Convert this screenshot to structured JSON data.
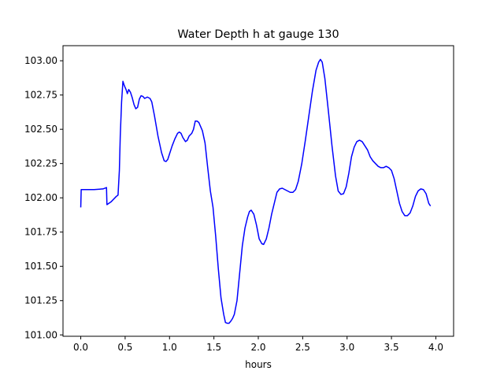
{
  "chart_data": {
    "type": "line",
    "title": "Water Depth h at gauge 130",
    "xlabel": "hours",
    "ylabel": "",
    "xlim": [
      -0.2,
      4.2
    ],
    "ylim": [
      100.99,
      103.11
    ],
    "xticks": [
      0.0,
      0.5,
      1.0,
      1.5,
      2.0,
      2.5,
      3.0,
      3.5,
      4.0
    ],
    "xtick_labels": [
      "0.0",
      "0.5",
      "1.0",
      "1.5",
      "2.0",
      "2.5",
      "3.0",
      "3.5",
      "4.0"
    ],
    "yticks": [
      101.0,
      101.25,
      101.5,
      101.75,
      102.0,
      102.25,
      102.5,
      102.75,
      103.0
    ],
    "ytick_labels": [
      "101.00",
      "101.25",
      "101.50",
      "101.75",
      "102.00",
      "102.25",
      "102.50",
      "102.75",
      "103.00"
    ],
    "grid": false,
    "line_color": "#0000ff",
    "series": [
      {
        "name": "",
        "points": [
          [
            0.0,
            101.93
          ],
          [
            0.005,
            102.06
          ],
          [
            0.05,
            102.06
          ],
          [
            0.15,
            102.06
          ],
          [
            0.25,
            102.065
          ],
          [
            0.29,
            102.075
          ],
          [
            0.295,
            101.95
          ],
          [
            0.34,
            101.97
          ],
          [
            0.4,
            102.01
          ],
          [
            0.42,
            102.02
          ],
          [
            0.435,
            102.2
          ],
          [
            0.445,
            102.45
          ],
          [
            0.46,
            102.7
          ],
          [
            0.475,
            102.85
          ],
          [
            0.49,
            102.82
          ],
          [
            0.51,
            102.79
          ],
          [
            0.525,
            102.76
          ],
          [
            0.54,
            102.79
          ],
          [
            0.56,
            102.77
          ],
          [
            0.58,
            102.73
          ],
          [
            0.6,
            102.68
          ],
          [
            0.62,
            102.65
          ],
          [
            0.64,
            102.66
          ],
          [
            0.66,
            102.72
          ],
          [
            0.68,
            102.745
          ],
          [
            0.7,
            102.74
          ],
          [
            0.72,
            102.725
          ],
          [
            0.75,
            102.735
          ],
          [
            0.78,
            102.725
          ],
          [
            0.8,
            102.7
          ],
          [
            0.83,
            102.6
          ],
          [
            0.87,
            102.45
          ],
          [
            0.91,
            102.33
          ],
          [
            0.94,
            102.27
          ],
          [
            0.96,
            102.265
          ],
          [
            0.98,
            102.28
          ],
          [
            1.0,
            102.32
          ],
          [
            1.03,
            102.38
          ],
          [
            1.06,
            102.43
          ],
          [
            1.09,
            102.47
          ],
          [
            1.11,
            102.48
          ],
          [
            1.13,
            102.47
          ],
          [
            1.15,
            102.44
          ],
          [
            1.18,
            102.41
          ],
          [
            1.2,
            102.42
          ],
          [
            1.22,
            102.45
          ],
          [
            1.25,
            102.47
          ],
          [
            1.27,
            102.5
          ],
          [
            1.29,
            102.56
          ],
          [
            1.31,
            102.56
          ],
          [
            1.33,
            102.55
          ],
          [
            1.35,
            102.52
          ],
          [
            1.37,
            102.49
          ],
          [
            1.4,
            102.4
          ],
          [
            1.43,
            102.22
          ],
          [
            1.46,
            102.05
          ],
          [
            1.49,
            101.93
          ],
          [
            1.52,
            101.72
          ],
          [
            1.55,
            101.48
          ],
          [
            1.58,
            101.27
          ],
          [
            1.61,
            101.15
          ],
          [
            1.63,
            101.09
          ],
          [
            1.65,
            101.085
          ],
          [
            1.67,
            101.085
          ],
          [
            1.69,
            101.1
          ],
          [
            1.71,
            101.12
          ],
          [
            1.73,
            101.15
          ],
          [
            1.76,
            101.25
          ],
          [
            1.79,
            101.45
          ],
          [
            1.82,
            101.65
          ],
          [
            1.85,
            101.78
          ],
          [
            1.88,
            101.86
          ],
          [
            1.9,
            101.9
          ],
          [
            1.92,
            101.91
          ],
          [
            1.95,
            101.88
          ],
          [
            1.98,
            101.8
          ],
          [
            2.01,
            101.7
          ],
          [
            2.04,
            101.665
          ],
          [
            2.06,
            101.66
          ],
          [
            2.09,
            101.7
          ],
          [
            2.12,
            101.78
          ],
          [
            2.15,
            101.88
          ],
          [
            2.18,
            101.96
          ],
          [
            2.21,
            102.04
          ],
          [
            2.24,
            102.065
          ],
          [
            2.27,
            102.07
          ],
          [
            2.3,
            102.06
          ],
          [
            2.33,
            102.05
          ],
          [
            2.36,
            102.04
          ],
          [
            2.39,
            102.04
          ],
          [
            2.42,
            102.06
          ],
          [
            2.45,
            102.12
          ],
          [
            2.49,
            102.25
          ],
          [
            2.53,
            102.42
          ],
          [
            2.57,
            102.6
          ],
          [
            2.61,
            102.78
          ],
          [
            2.65,
            102.93
          ],
          [
            2.68,
            102.99
          ],
          [
            2.7,
            103.01
          ],
          [
            2.72,
            102.99
          ],
          [
            2.75,
            102.87
          ],
          [
            2.79,
            102.63
          ],
          [
            2.83,
            102.38
          ],
          [
            2.87,
            102.16
          ],
          [
            2.9,
            102.05
          ],
          [
            2.93,
            102.025
          ],
          [
            2.96,
            102.03
          ],
          [
            2.99,
            102.08
          ],
          [
            3.02,
            102.18
          ],
          [
            3.05,
            102.3
          ],
          [
            3.08,
            102.37
          ],
          [
            3.11,
            102.41
          ],
          [
            3.14,
            102.42
          ],
          [
            3.17,
            102.41
          ],
          [
            3.2,
            102.38
          ],
          [
            3.23,
            102.35
          ],
          [
            3.26,
            102.3
          ],
          [
            3.29,
            102.27
          ],
          [
            3.32,
            102.25
          ],
          [
            3.35,
            102.23
          ],
          [
            3.38,
            102.22
          ],
          [
            3.41,
            102.22
          ],
          [
            3.44,
            102.23
          ],
          [
            3.47,
            102.22
          ],
          [
            3.5,
            102.2
          ],
          [
            3.53,
            102.14
          ],
          [
            3.56,
            102.05
          ],
          [
            3.59,
            101.96
          ],
          [
            3.62,
            101.9
          ],
          [
            3.65,
            101.87
          ],
          [
            3.68,
            101.87
          ],
          [
            3.71,
            101.89
          ],
          [
            3.74,
            101.94
          ],
          [
            3.77,
            102.01
          ],
          [
            3.8,
            102.05
          ],
          [
            3.83,
            102.065
          ],
          [
            3.86,
            102.06
          ],
          [
            3.89,
            102.03
          ],
          [
            3.92,
            101.96
          ],
          [
            3.94,
            101.94
          ]
        ]
      }
    ]
  }
}
